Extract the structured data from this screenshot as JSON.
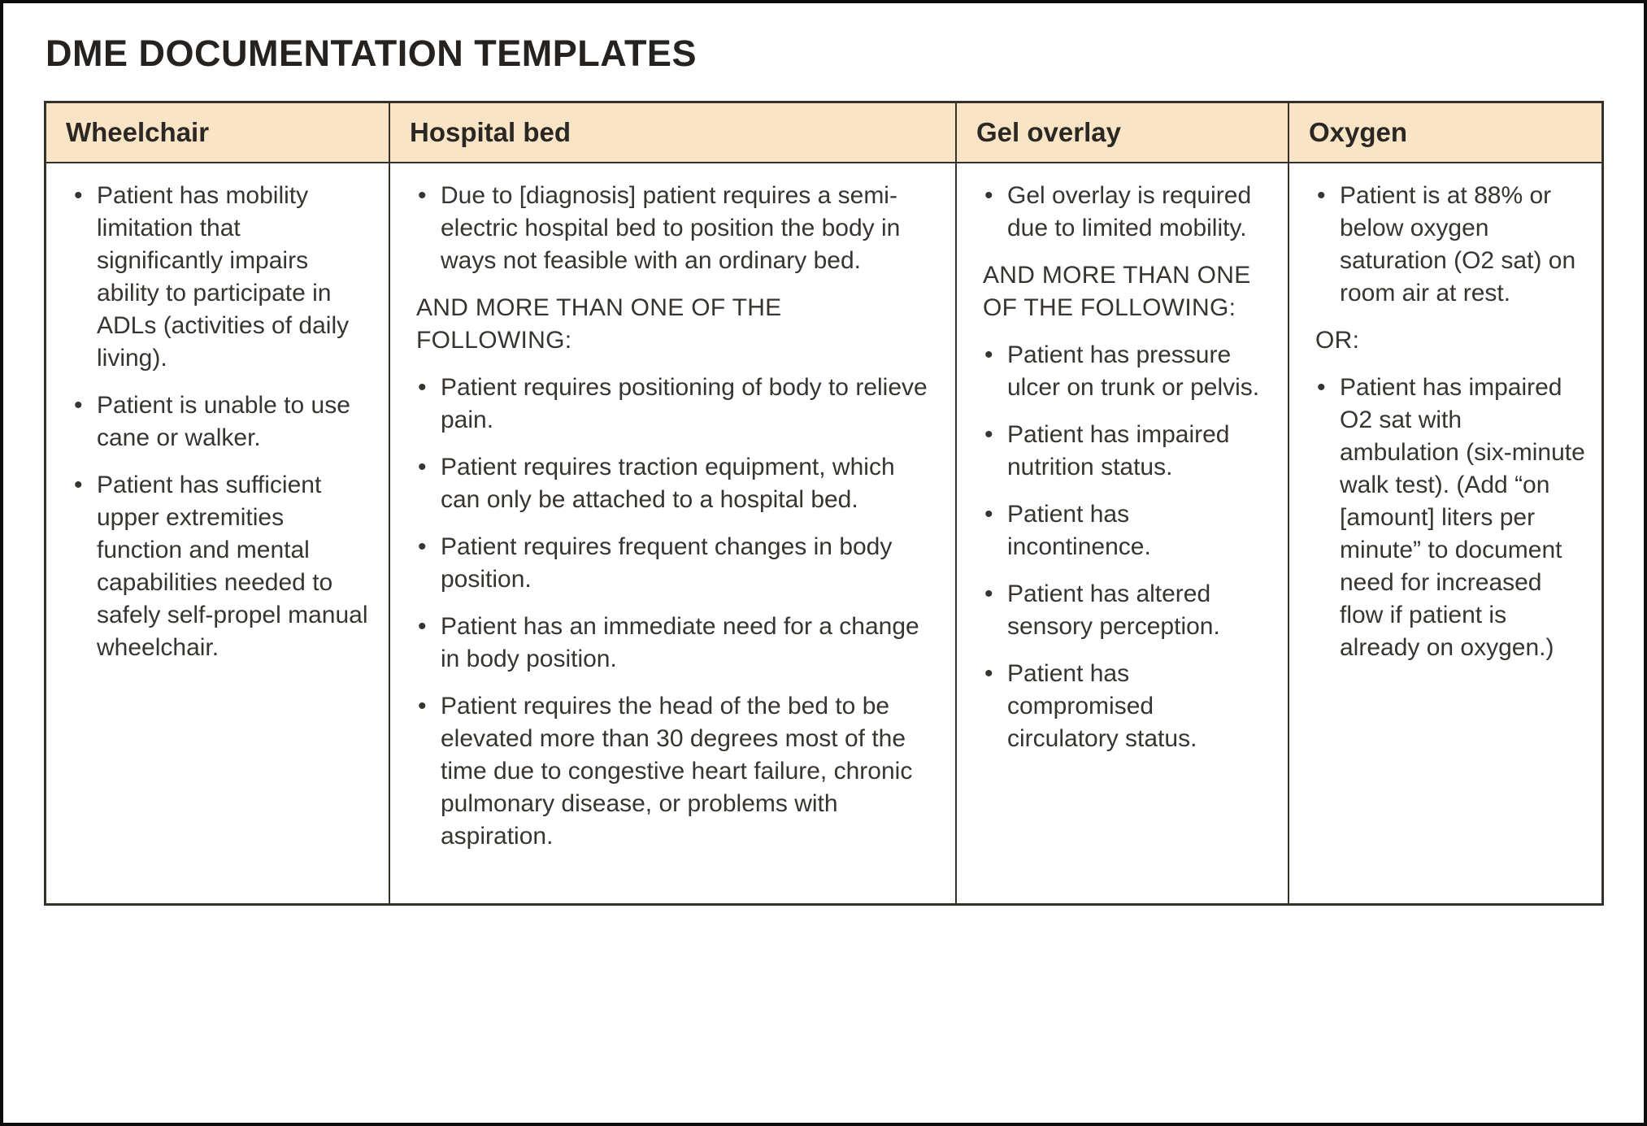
{
  "page": {
    "title": "DME DOCUMENTATION TEMPLATES"
  },
  "colors": {
    "header_bg": "#f9e5c6",
    "table_border": "#36302b",
    "body_text": "#38342f",
    "title_text": "#262220",
    "page_frame": "#0d0d0d"
  },
  "table": {
    "columns": [
      {
        "header": "Wheelchair",
        "blocks": [
          {
            "type": "bullet",
            "text": "Patient has mobility limitation that significantly impairs ability to participate in ADLs (activities of daily living)."
          },
          {
            "type": "bullet",
            "text": "Patient is unable to use cane or walker."
          },
          {
            "type": "bullet",
            "text": "Patient has sufficient upper extremities function and mental capabilities needed to safely self-propel manual wheelchair."
          }
        ]
      },
      {
        "header": "Hospital bed",
        "blocks": [
          {
            "type": "bullet",
            "text": "Due to [diagnosis] patient requires a semi-electric hospital bed to position the body in ways not feasible with an ordinary bed."
          },
          {
            "type": "plain",
            "text": "AND MORE THAN ONE OF THE FOLLOWING:"
          },
          {
            "type": "bullet",
            "text": "Patient requires positioning of body to relieve pain."
          },
          {
            "type": "bullet",
            "text": "Patient requires traction equipment, which can only be attached to a hospital bed."
          },
          {
            "type": "bullet",
            "text": "Patient requires frequent changes in body position."
          },
          {
            "type": "bullet",
            "text": "Patient has an immediate need for a change in body position."
          },
          {
            "type": "bullet",
            "text": "Patient requires the head of the bed to be elevated more than 30 degrees most of the time due to congestive heart failure, chronic pulmonary disease, or problems with aspiration."
          }
        ]
      },
      {
        "header": "Gel overlay",
        "blocks": [
          {
            "type": "bullet",
            "text": "Gel overlay is required due to limited mobility."
          },
          {
            "type": "plain",
            "text": "AND MORE THAN ONE OF THE FOLLOWING:"
          },
          {
            "type": "bullet",
            "text": "Patient has pressure ulcer on trunk or pelvis."
          },
          {
            "type": "bullet",
            "text": "Patient has impaired nutrition status."
          },
          {
            "type": "bullet",
            "text": "Patient has incontinence."
          },
          {
            "type": "bullet",
            "text": "Patient has altered sensory perception."
          },
          {
            "type": "bullet",
            "text": "Patient has compromised circulatory status."
          }
        ]
      },
      {
        "header": "Oxygen",
        "blocks": [
          {
            "type": "bullet",
            "text": "Patient is at 88% or below oxygen saturation (O2 sat) on room air at rest."
          },
          {
            "type": "plain",
            "text": "OR:"
          },
          {
            "type": "bullet",
            "text": "Patient has impaired O2 sat with ambulation (six-minute walk test). (Add “on [amount] liters per minute” to document need for increased flow if patient is already on oxygen.)"
          }
        ]
      }
    ]
  }
}
